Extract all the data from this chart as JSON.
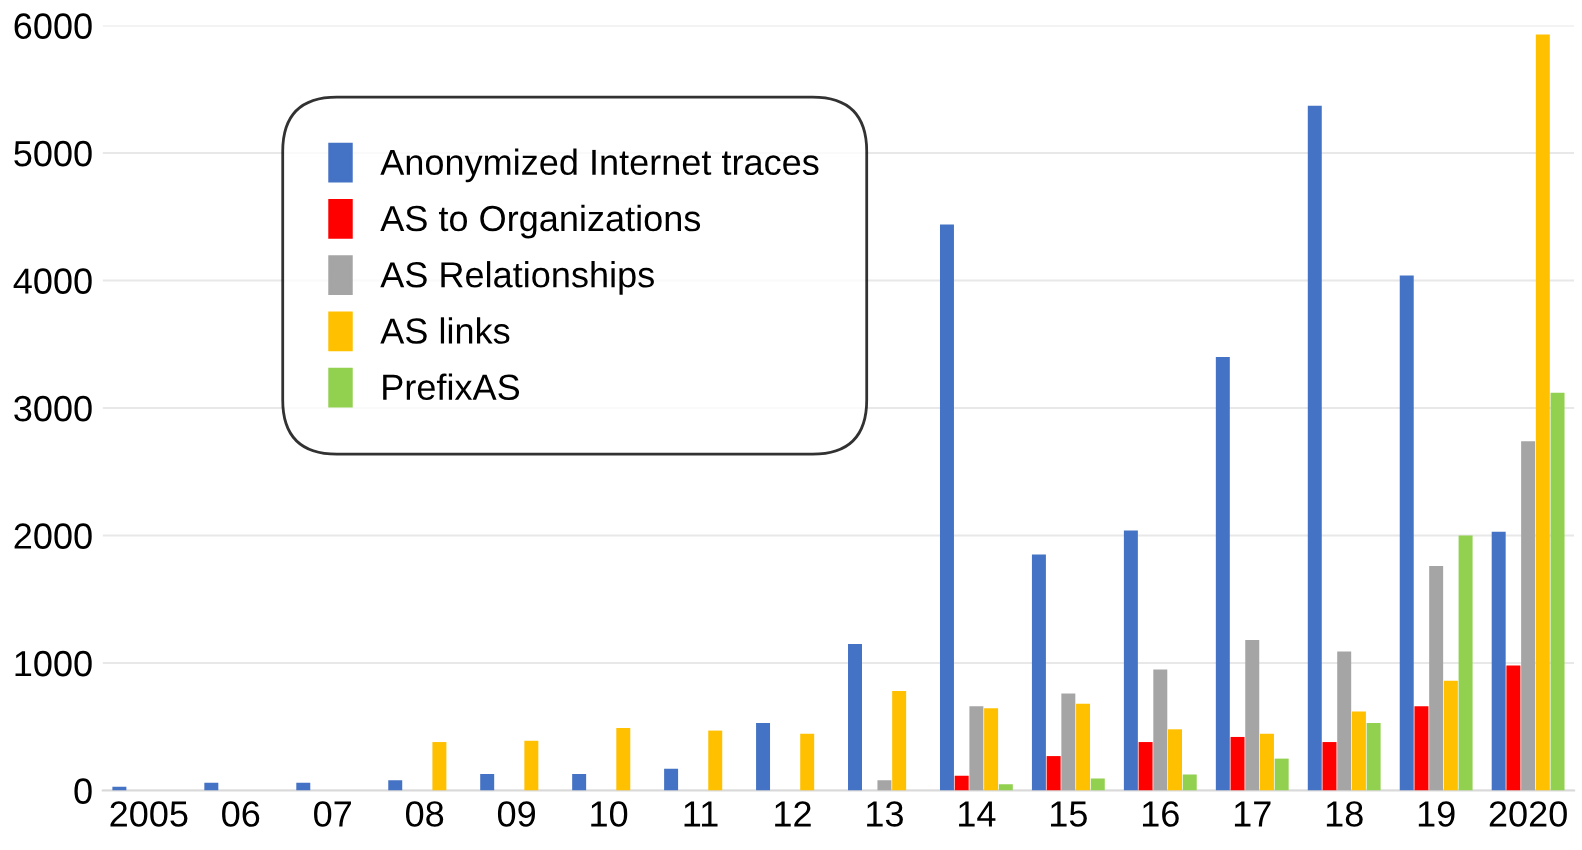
{
  "chart_data": {
    "type": "bar",
    "categories": [
      "2005",
      "06",
      "07",
      "08",
      "09",
      "10",
      "11",
      "12",
      "13",
      "14",
      "15",
      "16",
      "17",
      "18",
      "19",
      "2020"
    ],
    "series": [
      {
        "name": "Anonymized Internet traces",
        "color": "#4472c4",
        "values": [
          30,
          60,
          60,
          80,
          130,
          130,
          170,
          530,
          1150,
          4440,
          1850,
          2040,
          3400,
          5370,
          4040,
          2030
        ]
      },
      {
        "name": "AS to Organizations",
        "color": "#ff0000",
        "values": [
          0,
          0,
          0,
          0,
          0,
          0,
          0,
          0,
          0,
          115,
          270,
          380,
          420,
          380,
          660,
          980
        ]
      },
      {
        "name": "AS Relationships",
        "color": "#a5a5a5",
        "values": [
          0,
          0,
          0,
          0,
          0,
          0,
          0,
          0,
          80,
          660,
          760,
          950,
          1180,
          1090,
          1760,
          2740
        ]
      },
      {
        "name": "AS links",
        "color": "#ffc000",
        "values": [
          0,
          0,
          0,
          380,
          390,
          490,
          470,
          445,
          780,
          645,
          680,
          480,
          445,
          620,
          860,
          5930
        ]
      },
      {
        "name": "PrefixAS",
        "color": "#92d050",
        "values": [
          0,
          0,
          0,
          0,
          0,
          0,
          0,
          0,
          0,
          50,
          95,
          125,
          250,
          530,
          2000,
          3120
        ]
      }
    ],
    "ylim": [
      0,
      6000
    ],
    "yticks": [
      0,
      1000,
      2000,
      3000,
      4000,
      5000,
      6000
    ],
    "grid": "y",
    "legend": "top left"
  }
}
